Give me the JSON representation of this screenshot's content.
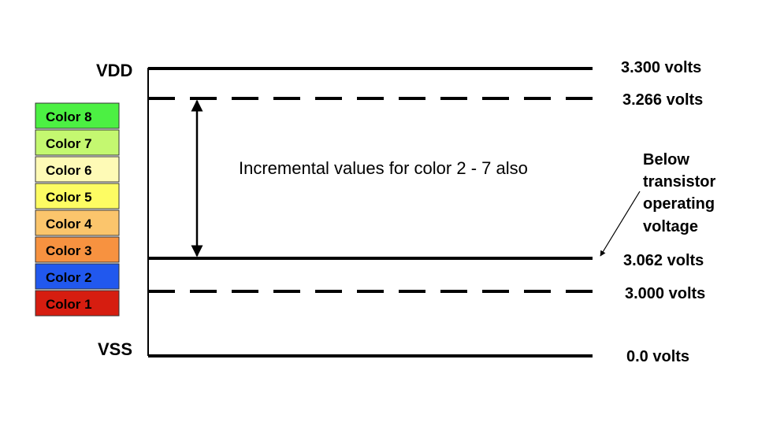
{
  "rails": {
    "top": "VDD",
    "bottom": "VSS"
  },
  "levels": [
    {
      "label": "3.300 volts",
      "style": "solid"
    },
    {
      "label": "3.266 volts",
      "style": "dashed"
    },
    {
      "label": "3.062 volts",
      "style": "solid"
    },
    {
      "label": "3.000 volts",
      "style": "dashed"
    },
    {
      "label": "0.0 volts",
      "style": "solid"
    }
  ],
  "middle_note": "Incremental values for color 2 - 7 also",
  "side_note": [
    "Below",
    "transistor",
    "operating",
    "voltage"
  ],
  "color_legend": [
    {
      "label": "Color 8",
      "color": "#4cf043"
    },
    {
      "label": "Color 7",
      "color": "#c4f870"
    },
    {
      "label": "Color 6",
      "color": "#fefab6"
    },
    {
      "label": "Color 5",
      "color": "#fdfc63"
    },
    {
      "label": "Color 4",
      "color": "#fbc56c"
    },
    {
      "label": "Color 3",
      "color": "#f79240"
    },
    {
      "label": "Color 2",
      "color": "#2158ee"
    },
    {
      "label": "Color 1",
      "color": "#d61d10"
    }
  ]
}
